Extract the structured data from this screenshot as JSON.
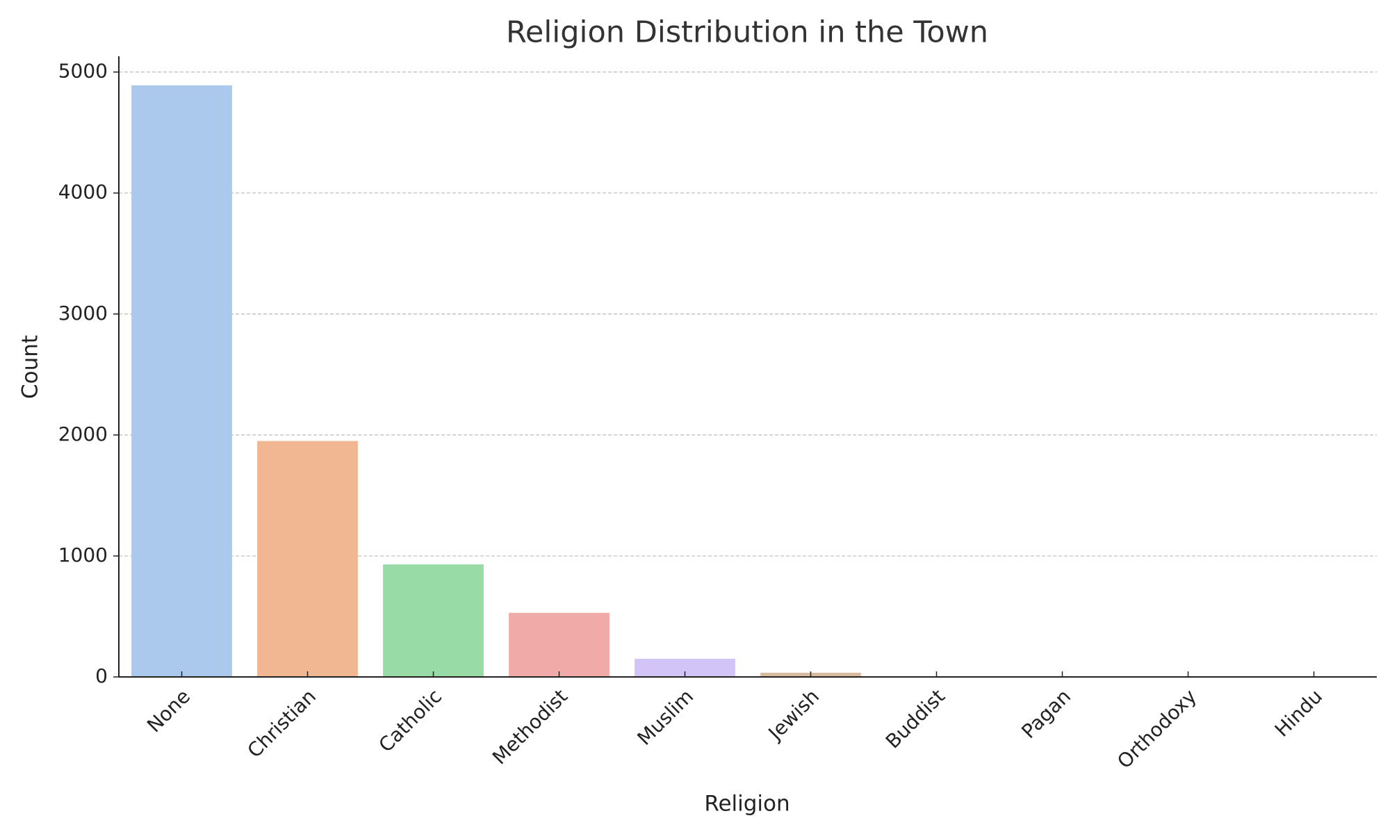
{
  "chart_data": {
    "type": "bar",
    "title": "Religion Distribution in the Town",
    "x_label": "Religion",
    "y_label": "Count",
    "categories": [
      "None",
      "Christian",
      "Catholic",
      "Methodist",
      "Muslim",
      "Jewish",
      "Buddist",
      "Pagan",
      "Orthodoxy",
      "Hindu"
    ],
    "values": [
      4890,
      1950,
      930,
      530,
      150,
      35,
      3,
      2,
      1,
      1
    ],
    "colors": [
      "#abc9ec",
      "#f0b792",
      "#99dba7",
      "#f0aaa7",
      "#d3c4f8",
      "#d9bca0",
      "#f3b9e0",
      "#cfcfcf",
      "#fffea3",
      "#b9f2f0"
    ],
    "ylim": [
      0,
      5130
    ],
    "yticks": [
      0,
      1000,
      2000,
      3000,
      4000,
      5000
    ],
    "grid": true
  }
}
